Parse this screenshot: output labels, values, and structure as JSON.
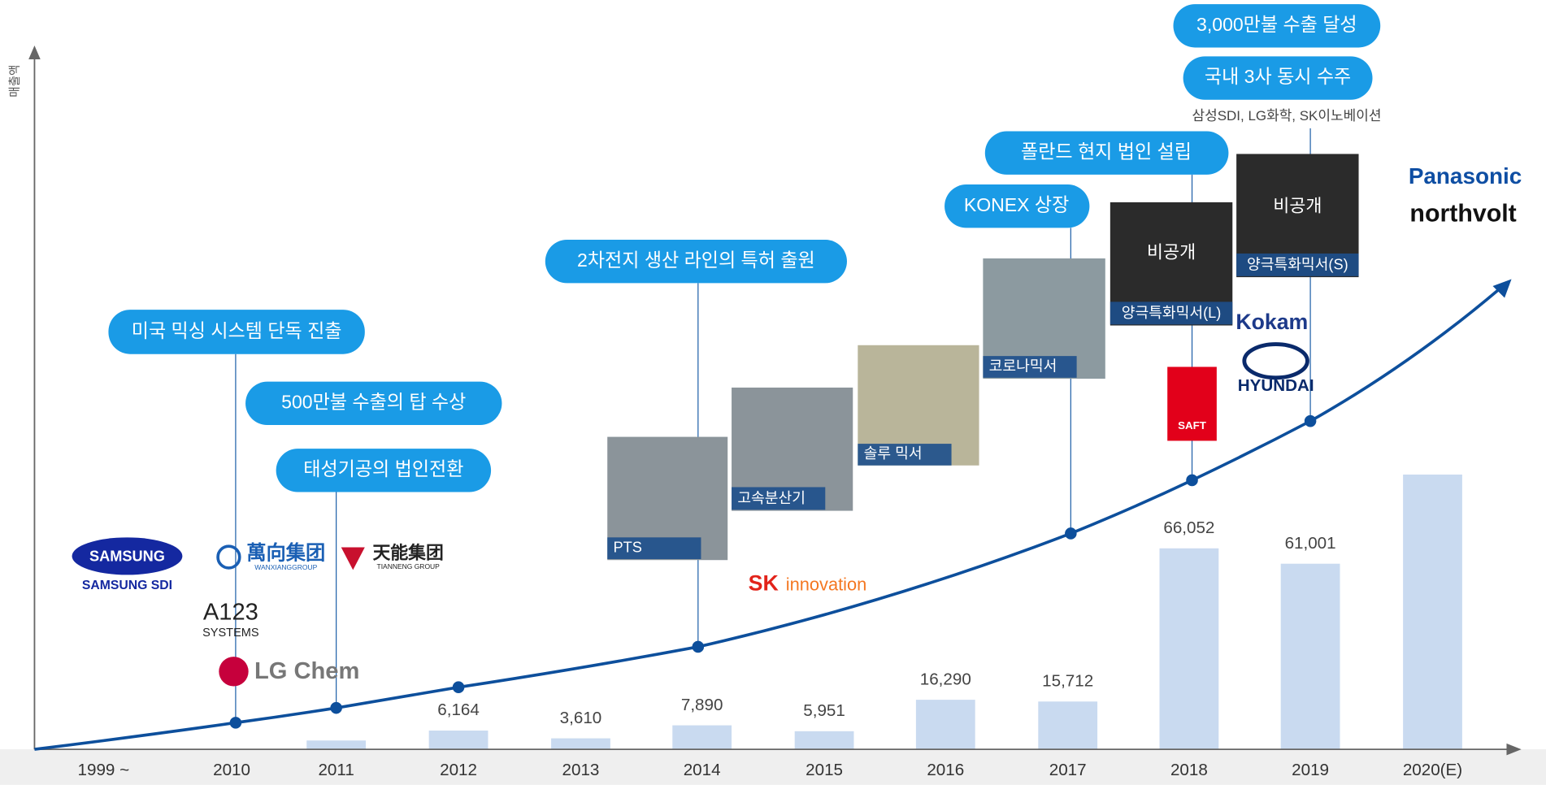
{
  "chart_data": {
    "type": "bar",
    "y_label": "매출액",
    "categories": [
      "1999 ~",
      "2010",
      "2011",
      "2012",
      "2013",
      "2014",
      "2015",
      "2016",
      "2017",
      "2018",
      "2019",
      "2020(E)"
    ],
    "values": [
      null,
      null,
      2900,
      6164,
      3610,
      7890,
      5951,
      16290,
      15712,
      66052,
      61001,
      90300
    ],
    "value_labels": [
      null,
      null,
      null,
      "6,164",
      "3,610",
      "7,890",
      "5,951",
      "16,290",
      "15,712",
      "66,052",
      "61,001",
      null
    ],
    "color": "#c9daf0",
    "ylim": [
      0,
      230000
    ]
  },
  "annotations": [
    "미국 믹싱 시스템 단독 진출",
    "500만불 수출의 탑 수상",
    "태성기공의 법인전환",
    "2차전지 생산 라인의 특허 출원",
    "KONEX 상장",
    "폴란드 현지 법인 설립",
    "국내 3사 동시 수주",
    "3,000만불 수출 달성"
  ],
  "note": "삼성SDI, LG화학, SK이노베이션",
  "photos": [
    {
      "caption": "PTS"
    },
    {
      "caption": "고속분산기"
    },
    {
      "caption": "솔루 믹서"
    },
    {
      "caption": "코로나믹서"
    },
    {
      "label": "비공개",
      "caption": "양극특화믹서(L)"
    },
    {
      "label": "비공개",
      "caption": "양극특화믹서(S)"
    }
  ],
  "logos": [
    "SAMSUNG",
    "SAMSUNG SDI",
    "萬向集团",
    "WANXIANGGROUP",
    "天能集团",
    "TIANNENG GROUP",
    "A123",
    "SYSTEMS",
    "LG Chem",
    "SK",
    "innovation",
    "Kokam",
    "HYUNDAI",
    "SAFT",
    "Panasonic",
    "northvolt"
  ]
}
